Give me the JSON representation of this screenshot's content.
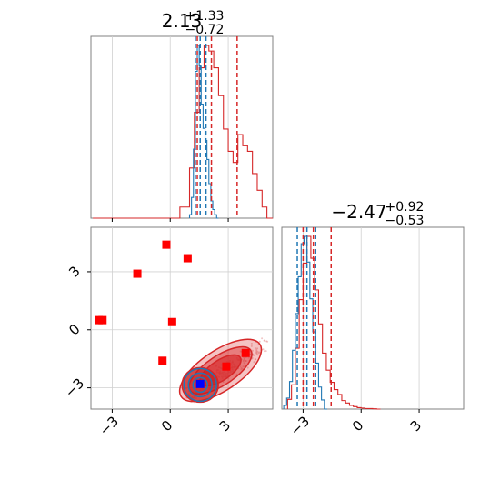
{
  "chart_data": {
    "type": "corner",
    "colors": {
      "series_a": "#d62728",
      "series_b": "#1f77b4",
      "markers": "#ff0000",
      "truth": "#0000ff"
    },
    "grid": true,
    "params": [
      {
        "title": {
          "base": "2.13",
          "sup": "+1.33",
          "sub": "−0.72"
        },
        "range": [
          -4.1,
          5.3
        ],
        "ticks": [
          -3,
          0,
          3
        ],
        "tick_labels": [
          "−3",
          "0",
          "3"
        ]
      },
      {
        "title": {
          "base": "−2.47",
          "sup": "+0.92",
          "sub": "−0.53"
        },
        "range": [
          -4.1,
          5.3
        ],
        "ticks": [
          -3,
          0,
          3
        ],
        "tick_labels": [
          "−3",
          "0",
          "3"
        ]
      }
    ],
    "series": [
      {
        "color": "#d62728",
        "hist_x": {
          "edges": [
            -4.0,
            -3.5,
            -3.0,
            -2.5,
            -2.0,
            -1.5,
            -1.0,
            -0.5,
            0.0,
            0.5,
            1.0,
            1.25,
            1.5,
            1.75,
            2.0,
            2.25,
            2.5,
            2.75,
            3.0,
            3.25,
            3.5,
            3.75,
            4.0,
            4.25,
            4.5,
            4.75,
            5.0,
            5.3
          ],
          "counts": [
            0,
            0,
            0,
            0,
            0,
            0,
            0,
            0,
            0,
            0.02,
            0.09,
            0.19,
            0.27,
            0.31,
            0.3,
            0.27,
            0.22,
            0.16,
            0.12,
            0.1,
            0.15,
            0.13,
            0.12,
            0.08,
            0.05,
            0.02,
            0.0
          ]
        },
        "hist_y": {
          "edges": [
            -3.8,
            -3.6,
            -3.4,
            -3.2,
            -3.0,
            -2.8,
            -2.6,
            -2.4,
            -2.2,
            -2.0,
            -1.8,
            -1.6,
            -1.4,
            -1.2,
            -1.0,
            -0.8,
            -0.6,
            -0.4,
            -0.2,
            0.0,
            0.2,
            0.4,
            0.6,
            0.8,
            1.0
          ],
          "counts": [
            0.04,
            0.1,
            0.25,
            0.45,
            0.6,
            0.71,
            0.62,
            0.49,
            0.35,
            0.23,
            0.16,
            0.11,
            0.08,
            0.06,
            0.035,
            0.025,
            0.015,
            0.01,
            0.006,
            0.004,
            0.002,
            0.002,
            0.001,
            0.0
          ]
        },
        "quantiles_x": [
          1.4,
          2.13,
          3.46
        ],
        "quantiles_y": [
          -3.0,
          -2.47,
          -1.55
        ]
      },
      {
        "color": "#1f77b4",
        "hist_x": {
          "edges": [
            1.0,
            1.1,
            1.2,
            1.3,
            1.4,
            1.5,
            1.6,
            1.7,
            1.8,
            1.9,
            2.0,
            2.1,
            2.2,
            2.3,
            2.4,
            2.5
          ],
          "counts": [
            0.02,
            0.12,
            0.4,
            0.85,
            1.0,
            0.88,
            0.66,
            0.52,
            0.45,
            0.34,
            0.2,
            0.1,
            0.05,
            0.02,
            0.0
          ]
        },
        "hist_y": {
          "edges": [
            -4.0,
            -3.85,
            -3.7,
            -3.55,
            -3.4,
            -3.25,
            -3.1,
            -2.95,
            -2.8,
            -2.65,
            -2.5,
            -2.35,
            -2.2,
            -2.05,
            -1.9,
            -1.75
          ],
          "counts": [
            0.02,
            0.06,
            0.15,
            0.32,
            0.52,
            0.72,
            0.9,
            0.94,
            0.8,
            0.6,
            0.42,
            0.25,
            0.12,
            0.05,
            0.0
          ]
        },
        "quantiles_x": [
          1.3,
          1.55,
          1.85
        ],
        "quantiles_y": [
          -3.3,
          -2.8,
          -2.35
        ],
        "contour_center": [
          1.55,
          -2.85
        ]
      }
    ],
    "markers": [
      {
        "x": -1.7,
        "y": 2.9
      },
      {
        "x": -0.2,
        "y": 4.4
      },
      {
        "x": 0.9,
        "y": 3.7
      },
      {
        "x": -3.5,
        "y": 0.5
      },
      {
        "x": -3.7,
        "y": 0.5
      },
      {
        "x": 0.1,
        "y": 0.4
      },
      {
        "x": -0.4,
        "y": -1.6
      },
      {
        "x": 2.9,
        "y": -1.9
      },
      {
        "x": 3.9,
        "y": -1.2
      }
    ],
    "truth_point": {
      "x": 1.55,
      "y": -2.8
    }
  }
}
